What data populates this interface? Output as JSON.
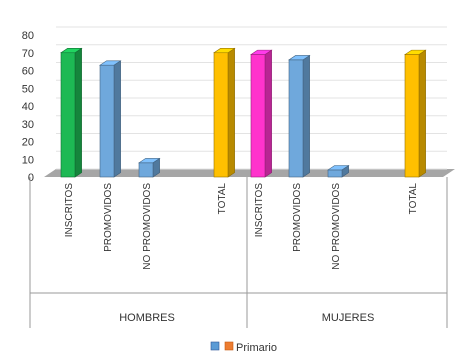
{
  "chart_data": {
    "type": "bar",
    "title": "",
    "xlabel": "",
    "ylabel": "",
    "ylim": [
      0,
      80
    ],
    "yticks": [
      0,
      10,
      20,
      30,
      40,
      50,
      60,
      70,
      80
    ],
    "grid": true,
    "legend": {
      "placement": "bottom",
      "label": "Primario",
      "swatch_colors": [
        "#5b9bd5",
        "#ed7d31"
      ]
    },
    "groups": [
      "HOMBRES",
      "MUJERES"
    ],
    "categories": [
      "INSCRITOS",
      "PROMOVIDOS",
      "NO PROMOVIDOS",
      "TOTAL"
    ],
    "bars": [
      {
        "group": "HOMBRES",
        "category": "INSCRITOS",
        "value": 70,
        "color": "#1db954"
      },
      {
        "group": "HOMBRES",
        "category": "PROMOVIDOS",
        "value": 63,
        "color": "#6fa8dc"
      },
      {
        "group": "HOMBRES",
        "category": "NO PROMOVIDOS",
        "value": 8,
        "color": "#6fa8dc"
      },
      {
        "group": "HOMBRES",
        "category": "TOTAL",
        "value": 70,
        "color": "#ffc000"
      },
      {
        "group": "MUJERES",
        "category": "INSCRITOS",
        "value": 69,
        "color": "#ff33cc"
      },
      {
        "group": "MUJERES",
        "category": "PROMOVIDOS",
        "value": 66,
        "color": "#6fa8dc"
      },
      {
        "group": "MUJERES",
        "category": "NO PROMOVIDOS",
        "value": 4,
        "color": "#6fa8dc"
      },
      {
        "group": "MUJERES",
        "category": "TOTAL",
        "value": 69,
        "color": "#ffc000"
      }
    ]
  }
}
